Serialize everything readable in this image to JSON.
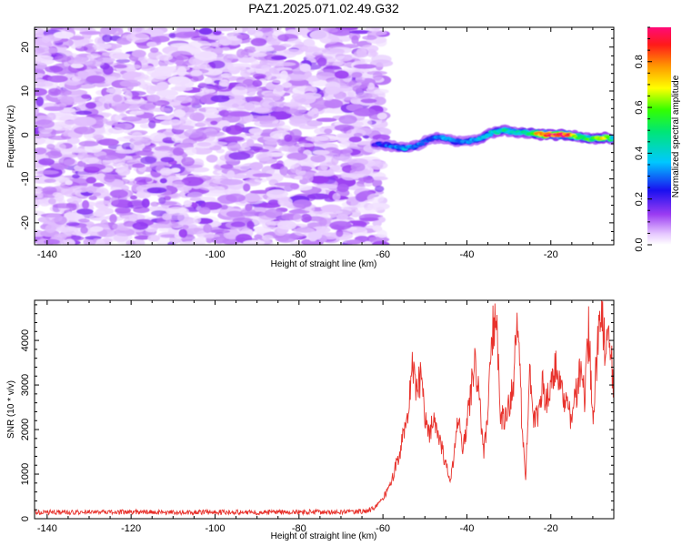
{
  "title": "PAZ1.2025.071.02.49.G32",
  "chart_data": [
    {
      "type": "heatmap",
      "xlabel": "Height of straight line (km)",
      "ylabel": "Frequency (Hz)",
      "xlim": [
        -143,
        -5
      ],
      "ylim": [
        -25,
        24.5
      ],
      "xticks": [
        -140,
        -120,
        -100,
        -80,
        -60,
        -40,
        -20
      ],
      "yticks": [
        -20,
        -10,
        0,
        10,
        20
      ],
      "colorbar": {
        "label": "Normalized spectral amplitude",
        "range": [
          0,
          0.95
        ],
        "ticks": [
          0.0,
          0.2,
          0.4,
          0.6,
          0.8
        ],
        "colormap": "rainbow (white-violet-blue-cyan-green-yellow-orange-red-magenta)"
      },
      "signal_trace": {
        "x": [
          -62,
          -58,
          -55,
          -52,
          -49,
          -46,
          -43,
          -40,
          -37,
          -34,
          -31,
          -28,
          -25,
          -22,
          -19,
          -16,
          -13,
          -10,
          -7,
          -5
        ],
        "frequency": [
          -2,
          -2.5,
          -3,
          -2.5,
          -1,
          -0.5,
          -1.5,
          -1.5,
          -1,
          0.5,
          1,
          0.5,
          0.5,
          0,
          0,
          0,
          -0.5,
          -1,
          -0.5,
          -1
        ],
        "amplitude": [
          0.2,
          0.3,
          0.35,
          0.3,
          0.25,
          0.35,
          0.3,
          0.3,
          0.35,
          0.4,
          0.45,
          0.4,
          0.5,
          0.85,
          0.9,
          0.85,
          0.5,
          0.55,
          0.7,
          0.4
        ]
      },
      "noise_region": {
        "x_range": [
          -143,
          -60
        ],
        "amplitude_range": [
          0,
          0.15
        ]
      }
    },
    {
      "type": "line",
      "xlabel": "Height of straight line (km)",
      "ylabel": "SNR (10 * v/v)",
      "xlim": [
        -143,
        -5
      ],
      "ylim": [
        0,
        4900
      ],
      "xticks": [
        -140,
        -120,
        -100,
        -80,
        -60,
        -40,
        -20
      ],
      "yticks": [
        0,
        1000,
        2000,
        3000,
        4000
      ],
      "color": "#e8322c",
      "series": [
        {
          "x": [
            -143,
            -130,
            -120,
            -110,
            -100,
            -90,
            -80,
            -70,
            -64,
            -62,
            -60,
            -58,
            -56,
            -54,
            -53,
            -52,
            -51,
            -50,
            -49,
            -48,
            -47,
            -46,
            -45,
            -44,
            -43,
            -42,
            -41,
            -40,
            -39,
            -38,
            -37,
            -36,
            -35,
            -34,
            -33,
            -32,
            -31,
            -30,
            -29,
            -28,
            -27,
            -26,
            -25,
            -24,
            -23,
            -22,
            -21,
            -20,
            -19,
            -18,
            -17,
            -16,
            -15,
            -14,
            -13,
            -12,
            -11,
            -10,
            -9,
            -8,
            -7,
            -6,
            -5
          ],
          "values": [
            150,
            140,
            150,
            140,
            150,
            140,
            150,
            150,
            170,
            250,
            450,
            800,
            1500,
            2400,
            3400,
            2800,
            3200,
            2300,
            1900,
            2200,
            1800,
            1600,
            1200,
            800,
            1500,
            2300,
            1400,
            2200,
            2900,
            3600,
            2600,
            1400,
            2400,
            4100,
            4700,
            2400,
            2100,
            2600,
            3000,
            4450,
            2400,
            1000,
            3200,
            2200,
            2400,
            3050,
            2600,
            2900,
            3300,
            3350,
            2500,
            2500,
            2200,
            2800,
            3400,
            2700,
            4200,
            2300,
            3700,
            4850,
            3700,
            3900,
            3000
          ]
        }
      ]
    }
  ]
}
